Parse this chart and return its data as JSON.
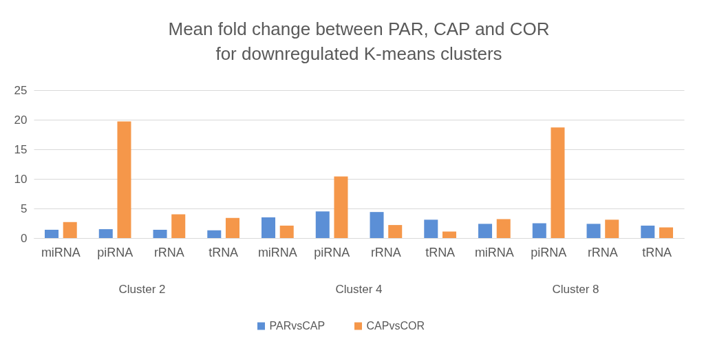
{
  "chart_data": {
    "type": "bar",
    "title": "Mean fold change between PAR, CAP and COR\nfor downregulated K-means clusters",
    "categories": [
      "miRNA",
      "piRNA",
      "rRNA",
      "tRNA",
      "miRNA",
      "piRNA",
      "rRNA",
      "tRNA",
      "miRNA",
      "piRNA",
      "rRNA",
      "tRNA"
    ],
    "series": [
      {
        "name": "PARvsCAP",
        "color": "#5b8fd6",
        "values": [
          1.4,
          1.5,
          1.4,
          1.3,
          3.5,
          4.5,
          4.4,
          3.1,
          2.4,
          2.5,
          2.4,
          2.1
        ]
      },
      {
        "name": "CAPvsCOR",
        "color": "#f5974a",
        "values": [
          2.7,
          19.7,
          4.0,
          3.4,
          2.1,
          10.4,
          2.2,
          1.1,
          3.2,
          18.7,
          3.1,
          1.8
        ]
      }
    ],
    "annotations": [
      "Cluster 2",
      "Cluster 4",
      "Cluster 8"
    ],
    "ylim": [
      0,
      25
    ],
    "yticks": [
      0,
      5,
      10,
      15,
      20,
      25
    ],
    "grid": "y",
    "legend": "bottom"
  }
}
